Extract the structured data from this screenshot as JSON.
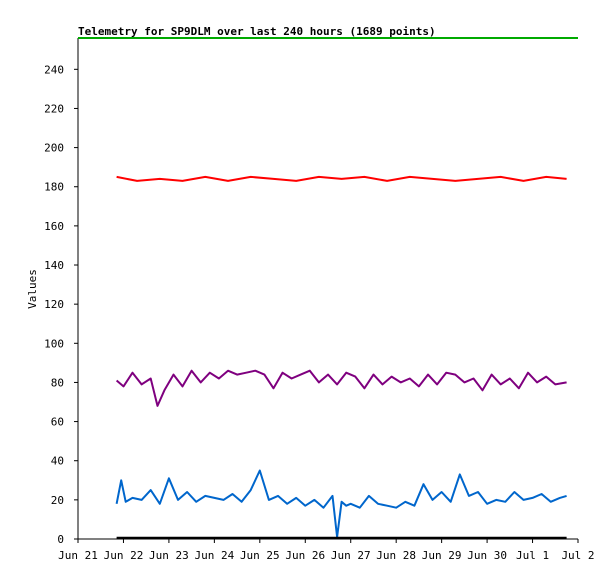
{
  "chart_data": {
    "type": "line",
    "title": "Telemetry for SP9DLM over last 240 hours (1689 points)",
    "ylabel": "Values",
    "xlabel": "",
    "ylim": [
      0,
      256
    ],
    "xlim": [
      0,
      11
    ],
    "x_ticks": [
      {
        "value": 0,
        "label": "Jun 21"
      },
      {
        "value": 1,
        "label": "Jun 22"
      },
      {
        "value": 2,
        "label": "Jun 23"
      },
      {
        "value": 3,
        "label": "Jun 24"
      },
      {
        "value": 4,
        "label": "Jun 25"
      },
      {
        "value": 5,
        "label": "Jun 26"
      },
      {
        "value": 6,
        "label": "Jun 27"
      },
      {
        "value": 7,
        "label": "Jun 28"
      },
      {
        "value": 8,
        "label": "Jun 29"
      },
      {
        "value": 9,
        "label": "Jun 30"
      },
      {
        "value": 10,
        "label": "Jul 1"
      },
      {
        "value": 11,
        "label": "Jul 2"
      }
    ],
    "y_ticks": [
      0,
      20,
      40,
      60,
      80,
      100,
      120,
      140,
      160,
      180,
      200,
      220,
      240
    ],
    "grid": false,
    "series": [
      {
        "color": "#00aa00",
        "x": [
          0,
          11
        ],
        "y": [
          256,
          256
        ]
      },
      {
        "color": "#ff0000",
        "x": [
          0.85,
          1.3,
          1.8,
          2.3,
          2.8,
          3.3,
          3.8,
          4.3,
          4.8,
          5.3,
          5.8,
          6.3,
          6.8,
          7.3,
          7.8,
          8.3,
          8.8,
          9.3,
          9.8,
          10.3,
          10.75
        ],
        "y": [
          185,
          183,
          184,
          183,
          185,
          183,
          185,
          184,
          183,
          185,
          184,
          185,
          183,
          185,
          184,
          183,
          184,
          185,
          183,
          185,
          184
        ]
      },
      {
        "color": "#7f007f",
        "x": [
          0.85,
          1.0,
          1.2,
          1.4,
          1.6,
          1.75,
          1.9,
          2.1,
          2.3,
          2.5,
          2.7,
          2.9,
          3.1,
          3.3,
          3.5,
          3.7,
          3.9,
          4.1,
          4.3,
          4.5,
          4.7,
          4.9,
          5.1,
          5.3,
          5.5,
          5.7,
          5.9,
          6.1,
          6.3,
          6.5,
          6.7,
          6.9,
          7.1,
          7.3,
          7.5,
          7.7,
          7.9,
          8.1,
          8.3,
          8.5,
          8.7,
          8.9,
          9.1,
          9.3,
          9.5,
          9.7,
          9.9,
          10.1,
          10.3,
          10.5,
          10.75
        ],
        "y": [
          81,
          78,
          85,
          79,
          82,
          68,
          76,
          84,
          78,
          86,
          80,
          85,
          82,
          86,
          84,
          85,
          86,
          84,
          77,
          85,
          82,
          84,
          86,
          80,
          84,
          79,
          85,
          83,
          77,
          84,
          79,
          83,
          80,
          82,
          78,
          84,
          79,
          85,
          84,
          80,
          82,
          76,
          84,
          79,
          82,
          77,
          85,
          80,
          83,
          79,
          80
        ]
      },
      {
        "color": "#0066cc",
        "x": [
          0.85,
          0.95,
          1.05,
          1.2,
          1.4,
          1.6,
          1.8,
          2.0,
          2.2,
          2.4,
          2.6,
          2.8,
          3.0,
          3.2,
          3.4,
          3.6,
          3.8,
          4.0,
          4.2,
          4.4,
          4.6,
          4.8,
          5.0,
          5.2,
          5.4,
          5.6,
          5.7,
          5.8,
          5.9,
          6.0,
          6.2,
          6.4,
          6.6,
          6.8,
          7.0,
          7.2,
          7.4,
          7.6,
          7.8,
          8.0,
          8.2,
          8.4,
          8.6,
          8.8,
          9.0,
          9.2,
          9.4,
          9.6,
          9.8,
          10.0,
          10.2,
          10.4,
          10.6,
          10.75
        ],
        "y": [
          18,
          30,
          19,
          21,
          20,
          25,
          18,
          31,
          20,
          24,
          19,
          22,
          21,
          20,
          23,
          19,
          25,
          35,
          20,
          22,
          18,
          21,
          17,
          20,
          16,
          22,
          1,
          19,
          17,
          18,
          16,
          22,
          18,
          17,
          16,
          19,
          17,
          28,
          20,
          24,
          19,
          33,
          22,
          24,
          18,
          20,
          19,
          24,
          20,
          21,
          23,
          19,
          21,
          22
        ]
      },
      {
        "color": "#000000",
        "x": [
          0.85,
          10.75
        ],
        "y": [
          0.6,
          0.6
        ]
      }
    ]
  }
}
